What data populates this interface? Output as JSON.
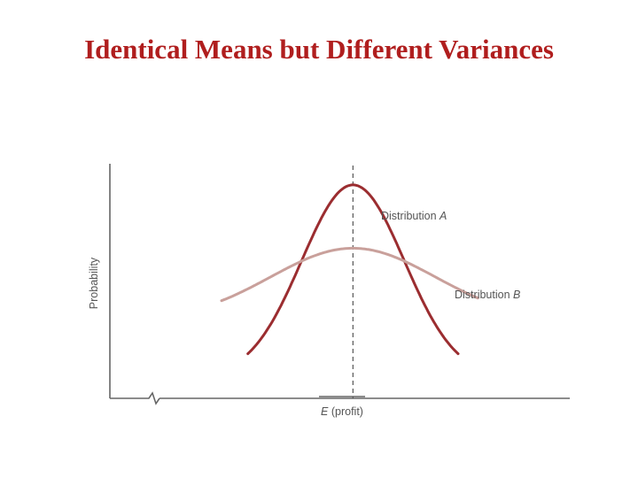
{
  "title": "Identical Means but Different Variances",
  "chart_data": {
    "type": "line",
    "ylabel": "Probability",
    "xlabel": "E (profit)",
    "xlabel_parts": {
      "var": "E",
      "rest": " (profit)"
    },
    "mean": 0,
    "xlim": [
      -3.7,
      3.3
    ],
    "ylim": [
      0,
      1
    ],
    "grid": false,
    "series": [
      {
        "name": "Distribution A",
        "label_parts": {
          "text": "Distribution ",
          "var": "A"
        },
        "color": "#9b2d30",
        "sd": 0.78,
        "floor": 0.09,
        "peak": 0.91,
        "x_range": [
          -1.6,
          1.6
        ]
      },
      {
        "name": "Distribution B",
        "label_parts": {
          "text": "Distribution ",
          "var": "B"
        },
        "color": "#c9a09b",
        "sd": 1.25,
        "floor": 0.33,
        "peak": 0.64,
        "x_range": [
          -2.0,
          1.9
        ]
      }
    ]
  }
}
